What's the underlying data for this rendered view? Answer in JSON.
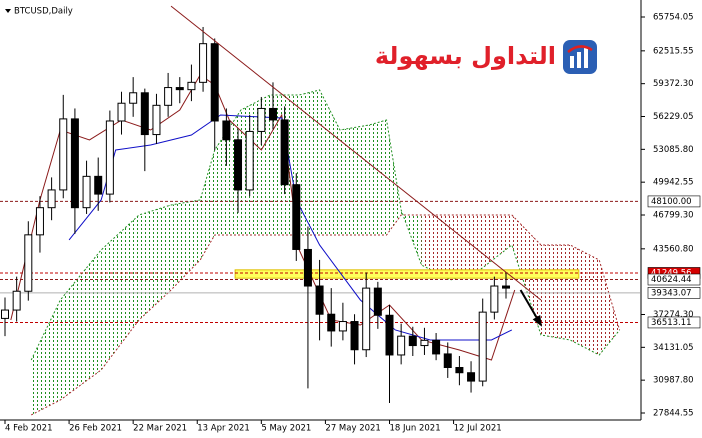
{
  "title": "BTCUSD,Daily",
  "watermark": "التداول بسهولة",
  "chart_data": {
    "type": "candlestick",
    "x": [
      0,
      4,
      8,
      12,
      16,
      20,
      24,
      28,
      32,
      36,
      40,
      44,
      48,
      52,
      56,
      60,
      64,
      68,
      72,
      76,
      80,
      84,
      88,
      92,
      96,
      100,
      104,
      108,
      112,
      116,
      120,
      124,
      128,
      132,
      136,
      140,
      144,
      148,
      152,
      156,
      160,
      164,
      168,
      172
    ],
    "open": [
      36900,
      37700,
      39500,
      44900,
      47500,
      49200,
      56000,
      47500,
      50500,
      48800,
      55800,
      57500,
      58500,
      54500,
      57300,
      59000,
      58800,
      59500,
      63200,
      55800,
      54000,
      49200,
      54800,
      57000,
      55900,
      49700,
      43500,
      40000,
      37300,
      35700,
      36600,
      33900,
      39800,
      37200,
      33400,
      35200,
      34300,
      34800,
      33500,
      32200,
      31700,
      30900,
      37500,
      40000
    ],
    "high": [
      38900,
      40900,
      46200,
      48600,
      50400,
      58300,
      57000,
      52000,
      52300,
      56800,
      58600,
      60000,
      58900,
      58400,
      60400,
      60000,
      61200,
      64800,
      63700,
      57000,
      55000,
      56400,
      58100,
      59500,
      57200,
      50800,
      45700,
      42500,
      39800,
      38400,
      37300,
      41300,
      40400,
      38200,
      36400,
      36100,
      36000,
      35500,
      34600,
      33300,
      32800,
      38800,
      40900,
      41300
    ],
    "low": [
      35200,
      36600,
      38600,
      43200,
      46300,
      48400,
      45000,
      46900,
      47200,
      48000,
      54500,
      56200,
      51000,
      53600,
      56200,
      57500,
      57700,
      58600,
      53000,
      51500,
      47000,
      48600,
      53500,
      55000,
      48800,
      42400,
      30200,
      34800,
      34200,
      34800,
      32500,
      33200,
      35900,
      28800,
      32500,
      33300,
      33400,
      32900,
      31200,
      30500,
      29800,
      30400,
      36800,
      38800
    ],
    "close": [
      37700,
      39500,
      44900,
      47500,
      49200,
      56000,
      47500,
      50500,
      48800,
      55800,
      57500,
      58500,
      54500,
      57300,
      59000,
      58800,
      59500,
      63200,
      55800,
      54000,
      49200,
      54800,
      57000,
      55900,
      49700,
      43500,
      40000,
      37300,
      35700,
      36600,
      33900,
      39800,
      37200,
      33400,
      35200,
      34300,
      34800,
      33500,
      32200,
      31700,
      30900,
      37500,
      40000,
      39800
    ],
    "up_color": "#ffffff",
    "down_color": "#000000",
    "outline_color": "#000000",
    "lines": [
      {
        "x": [
          2,
          7,
          12,
          19,
          29,
          40,
          50,
          60,
          67,
          72,
          77,
          88,
          95,
          101,
          112,
          122,
          132,
          143,
          156,
          167,
          175
        ],
        "values": [
          36749,
          42493,
          48237,
          54938,
          53981,
          55895,
          54938,
          56852,
          60203,
          59246,
          55895,
          53023,
          56374,
          43450,
          36749,
          36270,
          38185,
          34835,
          33878,
          32920,
          39621
        ],
        "color": "#8b1a1a"
      },
      {
        "x": [
          22,
          33,
          38,
          50,
          64,
          74,
          95,
          100,
          108,
          122,
          134,
          146,
          167,
          174
        ],
        "values": [
          44407,
          48237,
          53023,
          53502,
          54459,
          56373,
          56086,
          48237,
          43929,
          38664,
          35792,
          34835,
          34835,
          35792
        ],
        "color": "#1010c8"
      }
    ],
    "cloud": {
      "x": [
        9,
        19,
        33,
        46,
        57,
        67,
        72,
        81,
        91,
        101,
        108,
        115,
        125,
        131,
        136,
        143,
        153,
        163,
        174,
        184,
        194,
        204,
        211
      ],
      "span_a": [
        32920,
        38664,
        43450,
        46801,
        47758,
        48237,
        53023,
        56852,
        58289,
        58289,
        58767,
        54938,
        55416,
        55895,
        47279,
        42014,
        40579,
        41536,
        43929,
        35313,
        34835,
        33399,
        35792
      ],
      "span_b": [
        27654,
        29090,
        31963,
        36749,
        39621,
        42493,
        44886,
        44886,
        44886,
        44886,
        44886,
        44886,
        44886,
        44886,
        46801,
        46801,
        46801,
        46801,
        46801,
        43929,
        43929,
        42493,
        35792
      ],
      "up_color": "#1f8f1f",
      "down_color": "#a52a2a"
    },
    "levels": [
      {
        "value": 48100,
        "label": "48100.00",
        "color": "#8b1a1a",
        "style": "dashed",
        "label_bg": "#ffffff",
        "label_color": "#000000"
      },
      {
        "value": 41249.56,
        "label": "41249.56",
        "color": "#c00000",
        "style": "dashed",
        "label_bg": "#d40000",
        "label_color": "#ffffff"
      },
      {
        "value": 40624.44,
        "label": "40624.44",
        "color": "#8b1a1a",
        "style": "dashed",
        "label_bg": "#ffffff",
        "label_color": "#000000"
      },
      {
        "value": 39343.07,
        "label": "39343.07",
        "color": "#b0b0b0",
        "style": "solid",
        "label_bg": "#ffffff",
        "label_color": "#000000"
      },
      {
        "value": 36513.11,
        "label": "36513.11",
        "color": "#c00000",
        "style": "dashed",
        "label_bg": "#ffffff",
        "label_color": "#000000"
      }
    ],
    "zone": {
      "x": [
        79,
        197
      ],
      "y": [
        40750,
        41550
      ],
      "color": "#ffff5a",
      "border": "#e0c000"
    },
    "trendline": {
      "x": [
        57,
        184
      ],
      "y": [
        66800,
        38664
      ],
      "color": "#8b1a1a"
    },
    "arrow": {
      "x": [
        177,
        184
      ],
      "y": [
        39621,
        36270
      ],
      "color": "#000000"
    },
    "xlim": [
      0,
      218
    ],
    "ylim": [
      27365,
      66904
    ],
    "xticks": [
      {
        "value": 0,
        "label": "4 Feb 2021"
      },
      {
        "value": 22,
        "label": "26 Feb 2021"
      },
      {
        "value": 44,
        "label": "22 Mar 2021"
      },
      {
        "value": 66,
        "label": "13 Apr 2021"
      },
      {
        "value": 88,
        "label": "5 May 2021"
      },
      {
        "value": 110,
        "label": "27 May 2021"
      },
      {
        "value": 132,
        "label": "18 Jun 2021"
      },
      {
        "value": 154,
        "label": "12 Jul 2021"
      }
    ],
    "yticks": [
      65754.05,
      62515.55,
      {
        "value": 59372.3,
        "label": "59372.30"
      },
      56229.05,
      {
        "value": 53085.8,
        "label": "53085.80"
      },
      49942.55,
      {
        "value": 46799.3,
        "label": "46799.30"
      },
      {
        "value": 43560.8,
        "label": "43560.80"
      },
      {
        "value": 37274.3,
        "label": "37274.30"
      },
      34131.05,
      {
        "value": 30987.8,
        "label": "30987.80"
      },
      27844.55
    ]
  }
}
